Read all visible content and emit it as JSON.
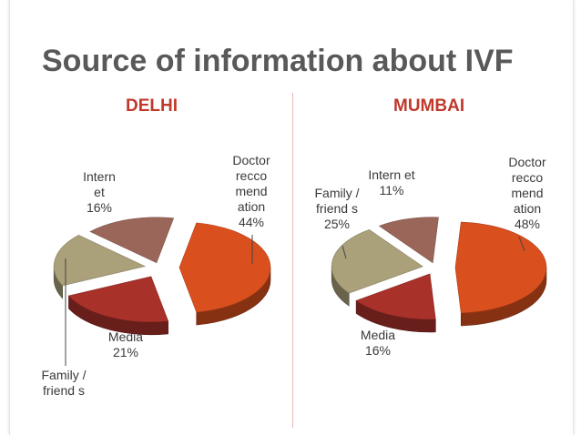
{
  "page": {
    "title": "Source of information about IVF"
  },
  "chart_data": [
    {
      "type": "pie",
      "title": "DELHI",
      "slices": [
        {
          "label": "Doctor recco mend ation",
          "value": 44,
          "display": "44%",
          "color": "#d94f1e"
        },
        {
          "label": "Media",
          "value": 21,
          "display": "21%",
          "color": "#a8312a"
        },
        {
          "label": "Family / friend s",
          "value": 19,
          "display": "",
          "color": "#aaa07a"
        },
        {
          "label": "Intern et",
          "value": 16,
          "display": "16%",
          "color": "#9a6659"
        }
      ],
      "legend": "none",
      "labels": "outside"
    },
    {
      "type": "pie",
      "title": "MUMBAI",
      "slices": [
        {
          "label": "Doctor recco mend ation",
          "value": 48,
          "display": "48%",
          "color": "#d94f1e"
        },
        {
          "label": "Media",
          "value": 16,
          "display": "16%",
          "color": "#a8312a"
        },
        {
          "label": "Family / friend s",
          "value": 25,
          "display": "25%",
          "color": "#aaa07a"
        },
        {
          "label": "Intern et",
          "value": 11,
          "display": "11%",
          "color": "#9a6659"
        }
      ],
      "legend": "none",
      "labels": "outside"
    }
  ]
}
